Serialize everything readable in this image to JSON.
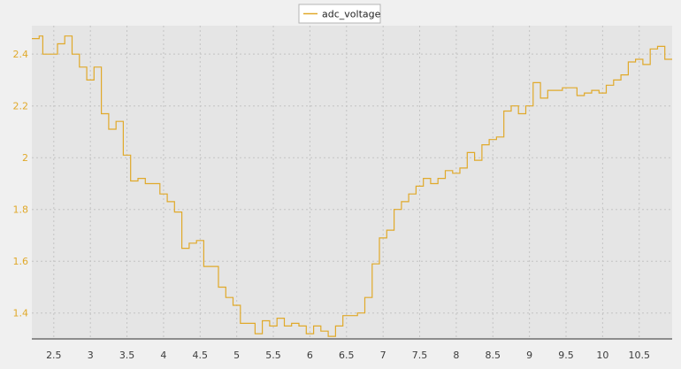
{
  "colors": {
    "background": "#f0f0f0",
    "plot_area": "#e5e5e5",
    "grid": "#c4c4c4",
    "series": "#e0a92a",
    "axis_text": "#e0a92a",
    "x_tick_text": "#3c3c3c",
    "axis_line": "#303030"
  },
  "chart_data": {
    "type": "line",
    "step": true,
    "title": "",
    "xlabel": "",
    "ylabel": "",
    "xlim": [
      2.2,
      10.95
    ],
    "ylim": [
      1.3,
      2.51
    ],
    "grid": true,
    "legend_position": "top-center",
    "x_ticks": [
      2.5,
      3,
      3.5,
      4,
      4.5,
      5,
      5.5,
      6,
      6.5,
      7,
      7.5,
      8,
      8.5,
      9,
      9.5,
      10,
      10.5
    ],
    "x_tick_labels": [
      "2.5",
      "3",
      "3.5",
      "4",
      "4.5",
      "5",
      "5.5",
      "6",
      "6.5",
      "7",
      "7.5",
      "8",
      "8.5",
      "9",
      "9.5",
      "10",
      "10.5"
    ],
    "y_ticks": [
      1.4,
      1.6,
      1.8,
      2.0,
      2.2,
      2.4
    ],
    "y_tick_labels": [
      "1.4",
      "1.6",
      "1.8",
      "2",
      "2.2",
      "2.4"
    ],
    "series": [
      {
        "name": "adc_voltage",
        "x": [
          2.2,
          2.3,
          2.35,
          2.45,
          2.55,
          2.65,
          2.75,
          2.85,
          2.95,
          3.05,
          3.15,
          3.25,
          3.35,
          3.45,
          3.55,
          3.65,
          3.75,
          3.85,
          3.95,
          4.05,
          4.15,
          4.25,
          4.35,
          4.45,
          4.55,
          4.65,
          4.75,
          4.85,
          4.95,
          5.05,
          5.15,
          5.25,
          5.35,
          5.45,
          5.55,
          5.65,
          5.75,
          5.85,
          5.95,
          6.05,
          6.15,
          6.25,
          6.35,
          6.45,
          6.55,
          6.65,
          6.75,
          6.85,
          6.95,
          7.05,
          7.15,
          7.25,
          7.35,
          7.45,
          7.55,
          7.65,
          7.75,
          7.85,
          7.95,
          8.05,
          8.15,
          8.25,
          8.35,
          8.45,
          8.55,
          8.65,
          8.75,
          8.85,
          8.95,
          9.05,
          9.15,
          9.25,
          9.35,
          9.45,
          9.55,
          9.65,
          9.75,
          9.85,
          9.95,
          10.05,
          10.15,
          10.25,
          10.35,
          10.45,
          10.55,
          10.65,
          10.75,
          10.85,
          10.95
        ],
        "y": [
          2.46,
          2.47,
          2.4,
          2.4,
          2.44,
          2.47,
          2.4,
          2.35,
          2.3,
          2.35,
          2.17,
          2.11,
          2.14,
          2.01,
          1.91,
          1.92,
          1.9,
          1.9,
          1.86,
          1.83,
          1.79,
          1.65,
          1.67,
          1.68,
          1.58,
          1.58,
          1.5,
          1.46,
          1.43,
          1.36,
          1.36,
          1.32,
          1.37,
          1.35,
          1.38,
          1.35,
          1.36,
          1.35,
          1.32,
          1.35,
          1.33,
          1.31,
          1.35,
          1.39,
          1.39,
          1.4,
          1.46,
          1.59,
          1.69,
          1.72,
          1.8,
          1.83,
          1.86,
          1.89,
          1.92,
          1.9,
          1.92,
          1.95,
          1.94,
          1.96,
          2.02,
          1.99,
          2.05,
          2.07,
          2.08,
          2.18,
          2.2,
          2.17,
          2.2,
          2.29,
          2.23,
          2.26,
          2.26,
          2.27,
          2.27,
          2.24,
          2.25,
          2.26,
          2.25,
          2.28,
          2.3,
          2.32,
          2.37,
          2.38,
          2.36,
          2.42,
          2.43,
          2.38,
          2.38
        ]
      }
    ]
  }
}
